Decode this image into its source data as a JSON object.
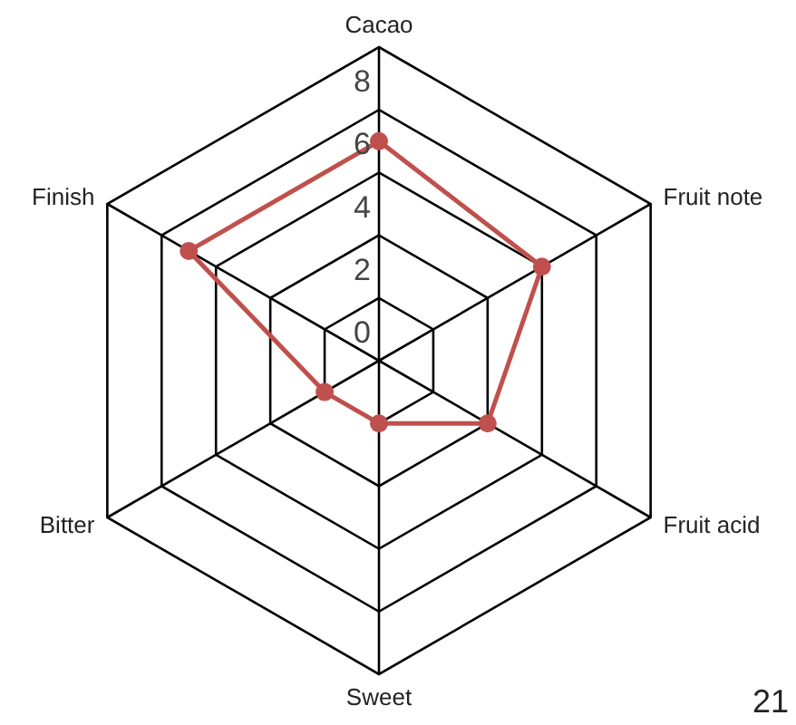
{
  "chart_data": {
    "type": "radar",
    "categories": [
      "Cacao",
      "Fruit note",
      "Fruit acid",
      "Sweet",
      "Bitter",
      "Finish"
    ],
    "series": [
      {
        "color": "#c0504d",
        "values": [
          7,
          6,
          4,
          2,
          2,
          7
        ]
      }
    ],
    "ylim": [
      0,
      10
    ],
    "yticks": [
      0,
      2,
      4,
      6,
      8
    ],
    "marker": "circle",
    "grid": true,
    "annotations": [
      "21"
    ]
  }
}
